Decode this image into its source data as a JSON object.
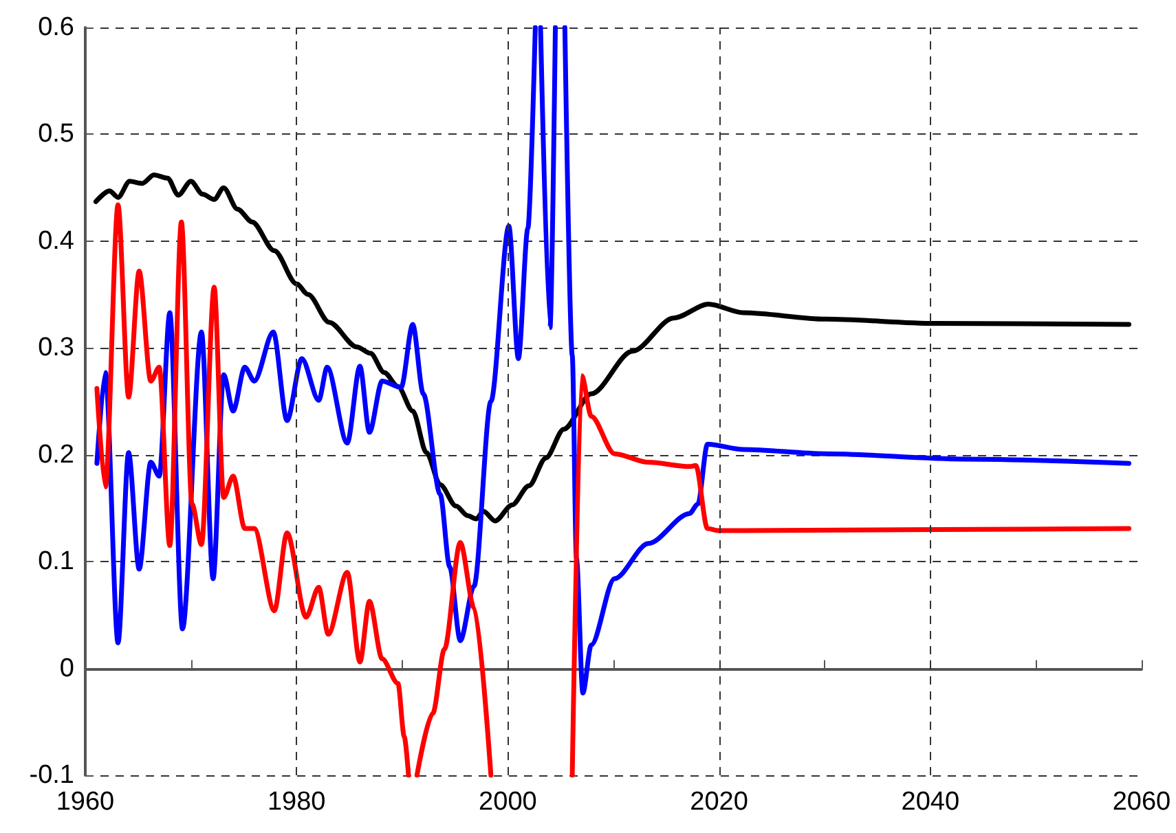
{
  "chart_data": {
    "type": "line",
    "xlim": [
      1960,
      2060
    ],
    "xticks": [
      1960,
      {
        "value": 1970,
        "label": null
      },
      1980,
      {
        "value": 1990,
        "label": null
      },
      2000,
      {
        "value": 2010,
        "label": null
      },
      2020,
      {
        "value": 2030,
        "label": null
      },
      2040,
      {
        "value": 2050,
        "label": null
      },
      2060
    ],
    "ylim": [
      -0.1,
      0.6
    ],
    "yticks": [
      -0.1,
      0,
      0.1,
      0.2,
      0.3,
      0.4,
      0.5,
      0.6
    ],
    "grid": true,
    "marker": "none",
    "line_style": "solid",
    "series": [
      {
        "color": "#000000",
        "x": [
          1961.0,
          1962.3,
          1963.1,
          1964.2,
          1965.4,
          1966.5,
          1967.8,
          1968.8,
          1970.0,
          1971.1,
          1972.2,
          1973.1,
          1974.4,
          1975.8,
          1977.9,
          1980.0,
          1981.1,
          1983.1,
          1985.7,
          1987.0,
          1988.3,
          1989.6,
          1991.0,
          1992.3,
          1993.6,
          1995.1,
          1996.2,
          1997.0,
          1997.7,
          1998.8,
          2000.4,
          2002.0,
          2003.6,
          2005.3,
          2007.9,
          2011.8,
          2015.7,
          2019.0,
          2022.3,
          2030.1,
          2040.5,
          2058.8
        ],
        "values": [
          0.437,
          0.447,
          0.441,
          0.456,
          0.454,
          0.462,
          0.459,
          0.443,
          0.456,
          0.444,
          0.439,
          0.45,
          0.43,
          0.418,
          0.391,
          0.36,
          0.35,
          0.324,
          0.301,
          0.295,
          0.277,
          0.264,
          0.241,
          0.202,
          0.172,
          0.152,
          0.143,
          0.14,
          0.147,
          0.138,
          0.153,
          0.171,
          0.197,
          0.224,
          0.257,
          0.297,
          0.328,
          0.341,
          0.333,
          0.327,
          0.323,
          0.322
        ]
      },
      {
        "color": "#0000ff",
        "x": [
          1961.1,
          1961.9,
          1963.1,
          1964.1,
          1965.1,
          1966.2,
          1967.0,
          1968.0,
          1969.2,
          1971.0,
          1972.1,
          1973.1,
          1974.0,
          1975.1,
          1976.0,
          1977.8,
          1979.1,
          1980.5,
          1982.1,
          1982.9,
          1984.8,
          1986.0,
          1986.9,
          1988.1,
          1989.9,
          1991.0,
          1992.0,
          1993.6,
          1994.5,
          1995.5,
          1996.8,
          1998.4,
          2000.1,
          2001.0,
          2001.9,
          2002.6,
          2002.8,
          2003.1,
          2004.0,
          2004.5,
          2004.9,
          2005.4,
          2006.1,
          2006.5,
          2007.1,
          2007.9,
          2010.1,
          2013.3,
          2017.2,
          2018.0,
          2018.9,
          2022.3,
          2030.1,
          2043.1,
          2058.8
        ],
        "values": [
          0.192,
          0.277,
          0.024,
          0.202,
          0.093,
          0.193,
          0.18,
          0.333,
          0.037,
          0.315,
          0.084,
          0.275,
          0.241,
          0.282,
          0.269,
          0.315,
          0.232,
          0.29,
          0.251,
          0.282,
          0.211,
          0.283,
          0.221,
          0.269,
          0.263,
          0.322,
          0.257,
          0.163,
          0.095,
          0.026,
          0.077,
          0.25,
          0.414,
          0.29,
          0.412,
          0.6,
          null,
          0.6,
          0.319,
          0.6,
          null,
          0.6,
          0.293,
          0.103,
          -0.023,
          0.022,
          0.084,
          0.117,
          0.145,
          0.154,
          0.21,
          0.205,
          0.201,
          0.196,
          0.192
        ]
      },
      {
        "color": "#ff0000",
        "x": [
          1961.1,
          1961.9,
          1963.1,
          1964.1,
          1965.1,
          1966.2,
          1967.0,
          1968.0,
          1969.1,
          1970.1,
          1971.0,
          1972.2,
          1973.1,
          1974.0,
          1975.1,
          1976.0,
          1977.9,
          1979.1,
          1980.9,
          1982.1,
          1983.0,
          1984.8,
          1986.0,
          1986.9,
          1988.1,
          1989.6,
          1990.2,
          1990.6,
          1991.0,
          1991.4,
          1992.9,
          1994.0,
          1995.5,
          1996.8,
          1998.4,
          2002.0,
          2006.1,
          2007.0,
          2007.9,
          2010.1,
          2013.3,
          2017.2,
          2017.8,
          2018.9,
          2020.0,
          2022.3,
          2040.5,
          2058.8
        ],
        "values": [
          0.262,
          0.17,
          0.434,
          0.254,
          0.372,
          0.269,
          0.282,
          0.115,
          0.418,
          0.154,
          0.116,
          0.357,
          0.16,
          0.18,
          0.131,
          0.131,
          0.054,
          0.127,
          0.048,
          0.076,
          0.032,
          0.09,
          0.006,
          0.063,
          0.009,
          -0.014,
          -0.064,
          -0.1,
          null,
          -0.1,
          -0.042,
          0.018,
          0.118,
          0.057,
          -0.1,
          null,
          -0.1,
          0.274,
          0.236,
          0.201,
          0.193,
          0.189,
          0.19,
          0.131,
          0.129,
          0.129,
          0.13,
          0.131
        ]
      }
    ]
  }
}
